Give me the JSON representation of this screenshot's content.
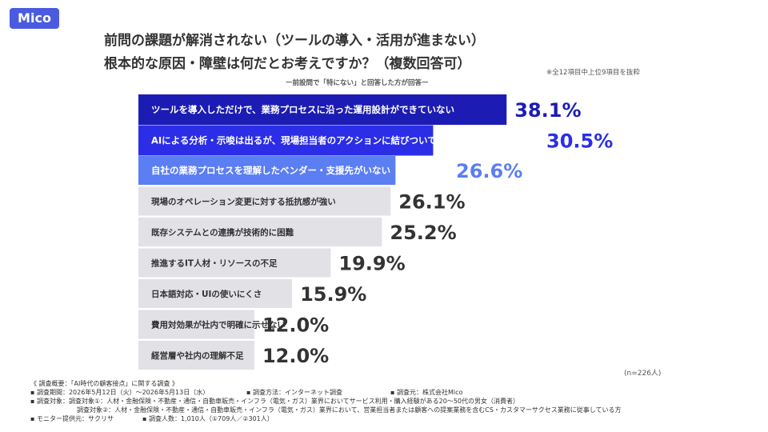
{
  "brand": {
    "logo": "Mico",
    "color": "#4a5be0"
  },
  "title_line1": "前問の課題が解消されない（ツールの導入・活用が進まない）",
  "title_line2": "根本的な原因・障壁は何だとお考えですか？（複数回答可）",
  "note_right": "※全12項目中上位9項目を抜粋",
  "subtitle": "ー前設問で「特にない」と回答した方が回答ー",
  "n_label": "(n=226人)",
  "chart_data": {
    "type": "bar",
    "orientation": "horizontal",
    "unit": "%",
    "xlim": [
      0,
      100
    ],
    "categories": [
      "ツールを導入しただけで、業務プロセスに沿った運用設計ができていない",
      "AIによる分析・示唆は出るが、現場担当者のアクションに結びついていない",
      "自社の業務プロセスを理解したベンダー・支援先がいない",
      "現場のオペレーション変更に対する抵抗感が強い",
      "既存システムとの連携が技術的に困難",
      "推進するIT人材・リソースの不足",
      "日本語対応・UIの使いにくさ",
      "費用対効果が社内で明確に示せない",
      "経営層や社内の理解不足"
    ],
    "values": [
      38.1,
      30.5,
      26.6,
      26.1,
      25.2,
      19.9,
      15.9,
      12.0,
      12.0
    ],
    "value_labels": [
      "38.1%",
      "30.5%",
      "26.6%",
      "26.1%",
      "25.2%",
      "19.9%",
      "15.9%",
      "12.0%",
      "12.0%"
    ],
    "bar_colors": [
      "#1c1cb4",
      "#2b2ee6",
      "#5b7ef2",
      "#e1e1e6",
      "#e1e1e6",
      "#e1e1e6",
      "#e1e1e6",
      "#e1e1e6",
      "#e1e1e6"
    ],
    "label_colors": [
      "#ffffff",
      "#ffffff",
      "#ffffff",
      "#333333",
      "#333333",
      "#333333",
      "#333333",
      "#333333",
      "#333333"
    ],
    "value_colors": [
      "#1c1cb4",
      "#2b2ee6",
      "#5b7ef2",
      "#333333",
      "#333333",
      "#333333",
      "#333333",
      "#333333",
      "#333333"
    ]
  },
  "footer": {
    "line1": "《 調査概要：「AI時代の顧客接点」に関する調査 》",
    "period": "▪ 調査期間：2026年5月12日（火）〜2026年5月13日（水）",
    "method": "▪ 調査方法：インターネット調査",
    "source": "▪ 調査元：株式会社Mico",
    "target1": "▪ 調査対象：調査対象①：人材・金融保険・不動産・通信・自動車販売・インフラ（電気・ガス）業界においてサービス利用・購入経験がある20〜50代の男女（消費者）",
    "target2": "調査対象②：人材・金融保険・不動産・通信・自動車販売・インフラ（電気・ガス）業界において、営業担当者または顧客への提案業務を含むCS・カスタマーサクセス業務に従事している方",
    "monitor": "▪ モニター提供元：サクリサ",
    "count": "▪ 調査人数：1,010人（①709人／②301人）"
  }
}
